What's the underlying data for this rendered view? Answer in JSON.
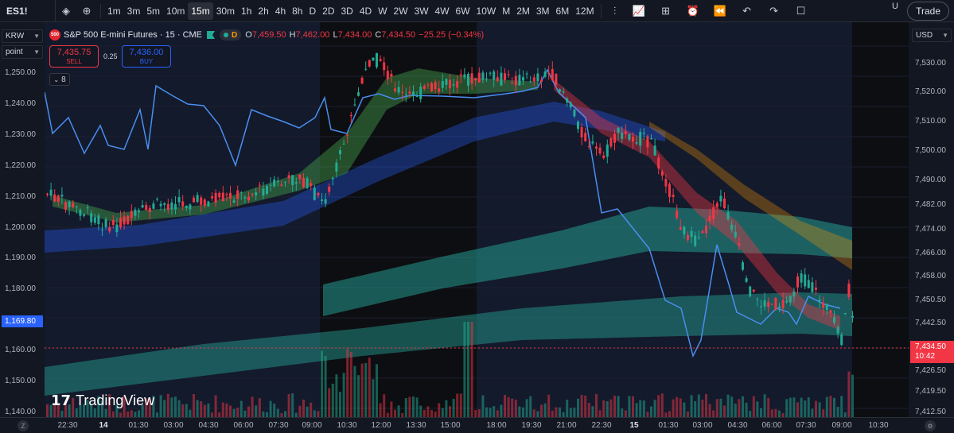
{
  "toolbar": {
    "symbol": "ES1!",
    "intervals": [
      "1m",
      "3m",
      "5m",
      "10m",
      "15m",
      "30m",
      "1h",
      "2h",
      "4h",
      "8h",
      "D",
      "2D",
      "3D",
      "4D",
      "W",
      "2W",
      "3W",
      "4W",
      "6W",
      "10W",
      "M",
      "2M",
      "3M",
      "6M",
      "12M"
    ],
    "active_interval": "15m",
    "trade_label": "Trade",
    "u_label": "U"
  },
  "legend": {
    "logo": "500",
    "title": "S&P 500 E-mini Futures · 15 · CME",
    "d_label": "D",
    "open_label": "O",
    "open": "7,459.50",
    "high_label": "H",
    "high": "7,462.00",
    "low_label": "L",
    "low": "7,434.00",
    "close_label": "C",
    "close": "7,434.50",
    "change": "−25.25 (−0.34%)"
  },
  "order": {
    "sell_price": "7,435.75",
    "sell_label": "SELL",
    "spread": "0.25",
    "buy_price": "7,436.00",
    "buy_label": "BUY",
    "collapse_count": "8"
  },
  "left_axis": {
    "currency": "KRW",
    "unit": "point",
    "ticks": [
      "1,250.00",
      "1,240.00",
      "1,230.00",
      "1,220.00",
      "1,210.00",
      "1,200.00",
      "1,190.00",
      "1,180.00",
      "1,170.00",
      "1,160.00",
      "1,150.00",
      "1,140.00"
    ],
    "current_tag": "1,169.80"
  },
  "right_axis": {
    "currency": "USD",
    "ticks": [
      "7,530.00",
      "7,520.00",
      "7,510.00",
      "7,500.00",
      "7,490.00",
      "7,482.00",
      "7,474.00",
      "7,466.00",
      "7,458.00",
      "7,450.50",
      "7,442.50",
      "7,426.50",
      "7,419.50",
      "7,412.50"
    ],
    "price_tag": "7,434.50",
    "countdown": "10:42"
  },
  "time_axis": {
    "labels": [
      "22:30",
      "14",
      "01:30",
      "03:00",
      "04:30",
      "06:00",
      "07:30",
      "09:00",
      "10:30",
      "12:00",
      "13:30",
      "15:00",
      "18:00",
      "19:30",
      "21:00",
      "22:30",
      "15",
      "01:30",
      "03:00",
      "04:30",
      "06:00",
      "07:30",
      "09:00",
      "10:30"
    ]
  },
  "watermark": {
    "logo": "17",
    "text": "TradingView"
  },
  "colors": {
    "up": "#22ab94",
    "down": "#f23645",
    "accent": "#2962ff",
    "krw_line": "#4a8ef0"
  }
}
